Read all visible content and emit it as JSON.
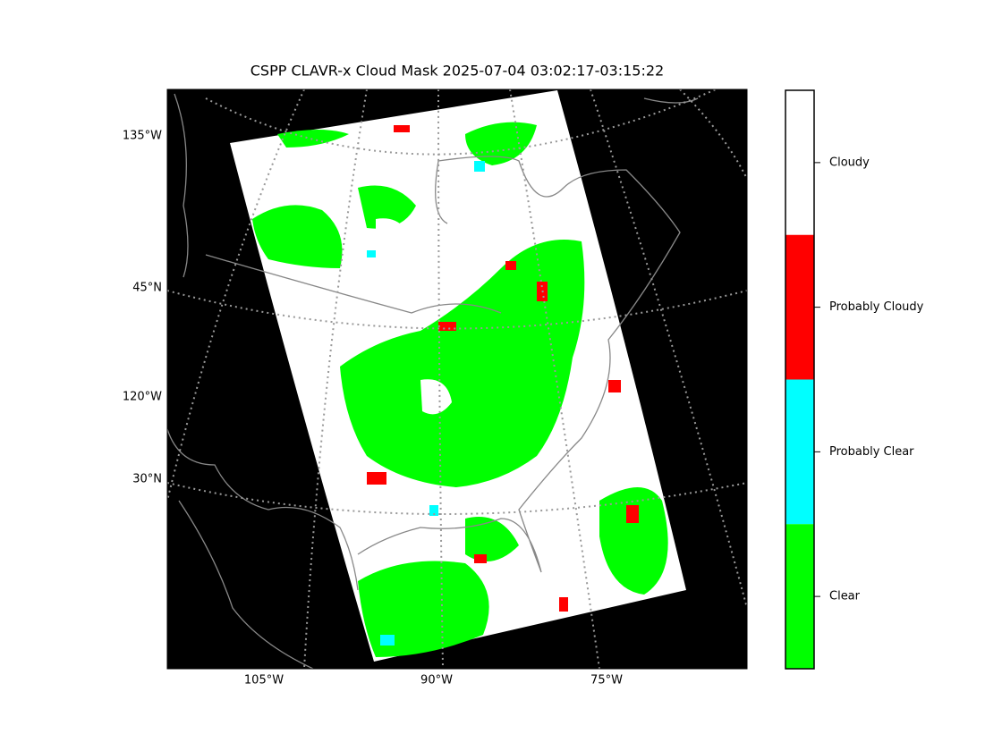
{
  "header": {
    "title": "CSPP CLAVR-x Cloud Mask 2025-07-04 03:02:17-03:15:22"
  },
  "map": {
    "left_labels": [
      "135°W",
      "45°N",
      "120°W",
      "30°N"
    ],
    "bottom_labels": [
      "105°W",
      "90°W",
      "75°W"
    ]
  },
  "colorbar": {
    "categories": [
      {
        "label": "Cloudy",
        "color": "#ffffff"
      },
      {
        "label": "Probably Cloudy",
        "color": "#ff0000"
      },
      {
        "label": "Probably Clear",
        "color": "#00ffff"
      },
      {
        "label": "Clear",
        "color": "#00ff00"
      }
    ]
  }
}
